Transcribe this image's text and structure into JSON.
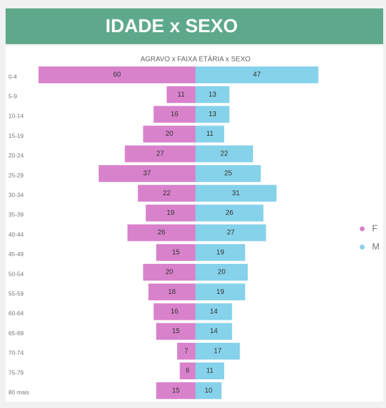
{
  "header": {
    "title": "IDADE x SEXO"
  },
  "chart_data": {
    "type": "bar",
    "orientation": "diverging",
    "title": "AGRAVO x FAIXA ETÁRIA x SEXO",
    "categories": [
      "0-4",
      "5-9",
      "10-14",
      "15-19",
      "20-24",
      "25-29",
      "30-34",
      "35-39",
      "40-44",
      "45-49",
      "50-54",
      "55-59",
      "60-64",
      "65-69",
      "70-74",
      "75-79",
      "80 mais"
    ],
    "series": [
      {
        "name": "F",
        "color": "#d982cc",
        "values": [
          60,
          11,
          16,
          20,
          27,
          37,
          22,
          19,
          26,
          15,
          20,
          18,
          16,
          15,
          7,
          6,
          15
        ]
      },
      {
        "name": "M",
        "color": "#86d2ea",
        "values": [
          47,
          13,
          13,
          11,
          22,
          25,
          31,
          26,
          27,
          19,
          20,
          19,
          14,
          14,
          17,
          11,
          10
        ]
      }
    ],
    "legend": "right"
  }
}
